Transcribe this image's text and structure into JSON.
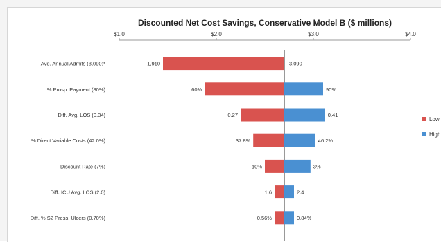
{
  "chart_data": {
    "type": "bar",
    "orientation": "horizontal-tornado",
    "title": "Discounted Net Cost Savings, Conservative Model B ($ millions)",
    "xlabel": "",
    "ylabel": "",
    "xlim": [
      1.0,
      4.0
    ],
    "xticks": [
      1.0,
      2.0,
      3.0,
      4.0
    ],
    "xtick_labels": [
      "$1.0",
      "$2.0",
      "$3.0",
      "$4.0"
    ],
    "base_value": 2.7,
    "categories": [
      "Avg. Annual Admits (3,090)*",
      "% Prosp. Payment (80%)",
      "Diff. Avg. LOS (0.34)",
      "% Direct Variable Costs (42.0%)",
      "Discount Rate (7%)",
      "Diff. ICU Avg. LOS (2.0)",
      "Diff. % S2 Press. Ulcers (0.70%)"
    ],
    "series": [
      {
        "name": "Low",
        "color": "#d9534f",
        "values": [
          1.45,
          1.88,
          2.25,
          2.38,
          2.5,
          2.6,
          2.6
        ],
        "labels": [
          "1,910",
          "60%",
          "0.27",
          "37.8%",
          "10%",
          "1.6",
          "0.56%"
        ]
      },
      {
        "name": "High",
        "color": "#4a90d2",
        "values": [
          2.7,
          3.1,
          3.12,
          3.02,
          2.97,
          2.8,
          2.8
        ],
        "labels": [
          "3,090",
          "90%",
          "0.41",
          "46.2%",
          "3%",
          "2.4",
          "0.84%"
        ]
      }
    ],
    "legend_position": "right",
    "grid": false
  }
}
